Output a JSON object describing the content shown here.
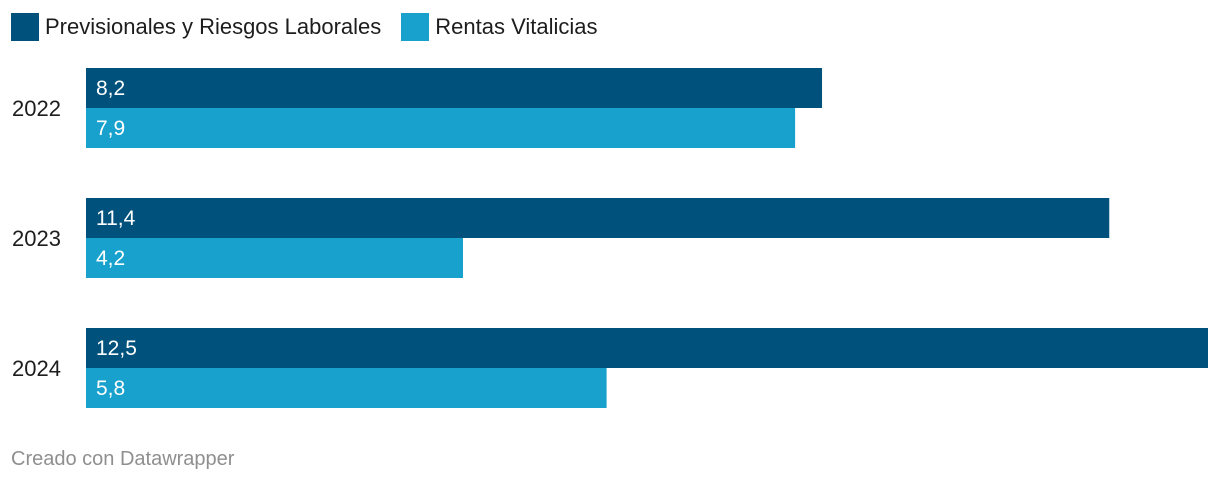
{
  "legend": [
    {
      "label": "Previsionales y Riesgos Laborales",
      "color": "#00527c"
    },
    {
      "label": "Rentas Vitalicias",
      "color": "#18a1cd"
    }
  ],
  "footer": {
    "credit": "Creado con Datawrapper"
  },
  "chart_data": {
    "type": "bar",
    "orientation": "horizontal",
    "categories": [
      "2022",
      "2023",
      "2024"
    ],
    "series": [
      {
        "name": "Previsionales y Riesgos Laborales",
        "color": "#00527c",
        "values": [
          8.2,
          11.4,
          12.5
        ],
        "labels": [
          "8,2",
          "11,4",
          "12,5"
        ]
      },
      {
        "name": "Rentas Vitalicias",
        "color": "#18a1cd",
        "values": [
          7.9,
          4.2,
          5.8
        ],
        "labels": [
          "7,9",
          "4,2",
          "5,8"
        ]
      }
    ],
    "xlim": [
      0,
      12.5
    ],
    "grid": false,
    "legend_position": "top-left"
  }
}
